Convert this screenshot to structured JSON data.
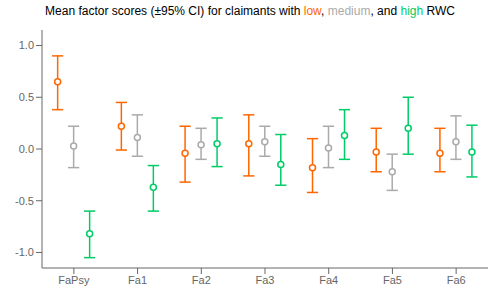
{
  "chart_data": {
    "type": "errorbar",
    "title": "Mean factor scores (±95% CI) for claimants with low, medium, and high RWC",
    "categories": [
      "FaPsy",
      "Fa1",
      "Fa2",
      "Fa3",
      "Fa4",
      "Fa5",
      "Fa6"
    ],
    "series": [
      {
        "name": "low",
        "color": "#FF6600",
        "marker": "open_circle",
        "values": [
          0.65,
          0.22,
          -0.04,
          0.05,
          -0.18,
          -0.03,
          -0.04
        ],
        "ci_low": [
          0.38,
          -0.01,
          -0.32,
          -0.26,
          -0.42,
          -0.22,
          -0.22
        ],
        "ci_high": [
          0.9,
          0.45,
          0.22,
          0.33,
          0.1,
          0.2,
          0.2
        ]
      },
      {
        "name": "medium",
        "color": "#AAAAAA",
        "marker": "open_circle",
        "values": [
          0.03,
          0.11,
          0.04,
          0.07,
          0.01,
          -0.22,
          0.07
        ],
        "ci_low": [
          -0.18,
          -0.07,
          -0.1,
          -0.07,
          -0.18,
          -0.4,
          -0.1
        ],
        "ci_high": [
          0.22,
          0.33,
          0.2,
          0.22,
          0.22,
          -0.05,
          0.32
        ]
      },
      {
        "name": "high",
        "color": "#00CC66",
        "marker": "open_circle",
        "values": [
          -0.82,
          -0.37,
          0.05,
          -0.15,
          0.13,
          0.2,
          -0.03
        ],
        "ci_low": [
          -1.05,
          -0.6,
          -0.17,
          -0.35,
          -0.1,
          -0.05,
          -0.27
        ],
        "ci_high": [
          -0.6,
          -0.16,
          0.3,
          0.14,
          0.38,
          0.5,
          0.23
        ]
      }
    ],
    "ylim": [
      -1.15,
      1.15
    ],
    "yticks": [
      {
        "value": -1.0,
        "label": "-1.0"
      },
      {
        "value": -0.5,
        "label": "-0.5"
      },
      {
        "value": 0.0,
        "label": "0.0"
      },
      {
        "value": 0.5,
        "label": "0.5"
      },
      {
        "value": 1.0,
        "label": "1.0"
      }
    ],
    "grid": false
  }
}
